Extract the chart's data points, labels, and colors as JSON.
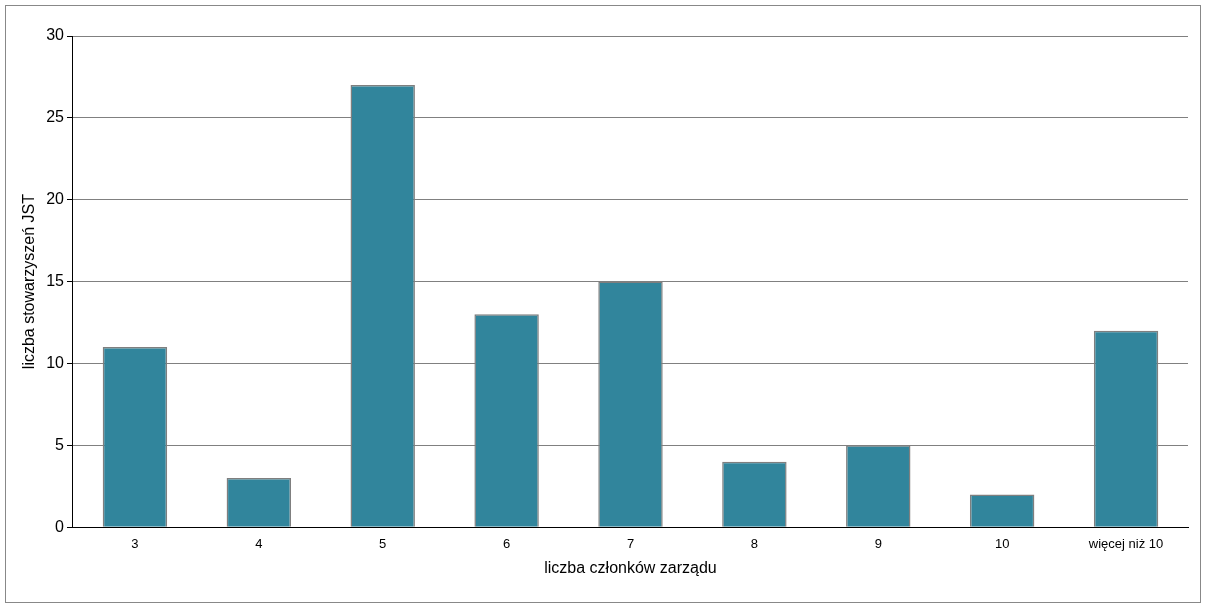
{
  "chart_data": {
    "type": "bar",
    "xlabel": "liczba członków zarządu",
    "ylabel": "liczba stowarzyszeń JST",
    "categories": [
      "3",
      "4",
      "5",
      "6",
      "7",
      "8",
      "9",
      "10",
      "więcej niż 10"
    ],
    "values": [
      11,
      3,
      27,
      13,
      15,
      4,
      5,
      2,
      12
    ],
    "color": "#31859c",
    "ylim": [
      0,
      30
    ],
    "yticks": [
      0,
      5,
      10,
      15,
      20,
      25,
      30
    ],
    "grid": "y",
    "legend": false
  }
}
